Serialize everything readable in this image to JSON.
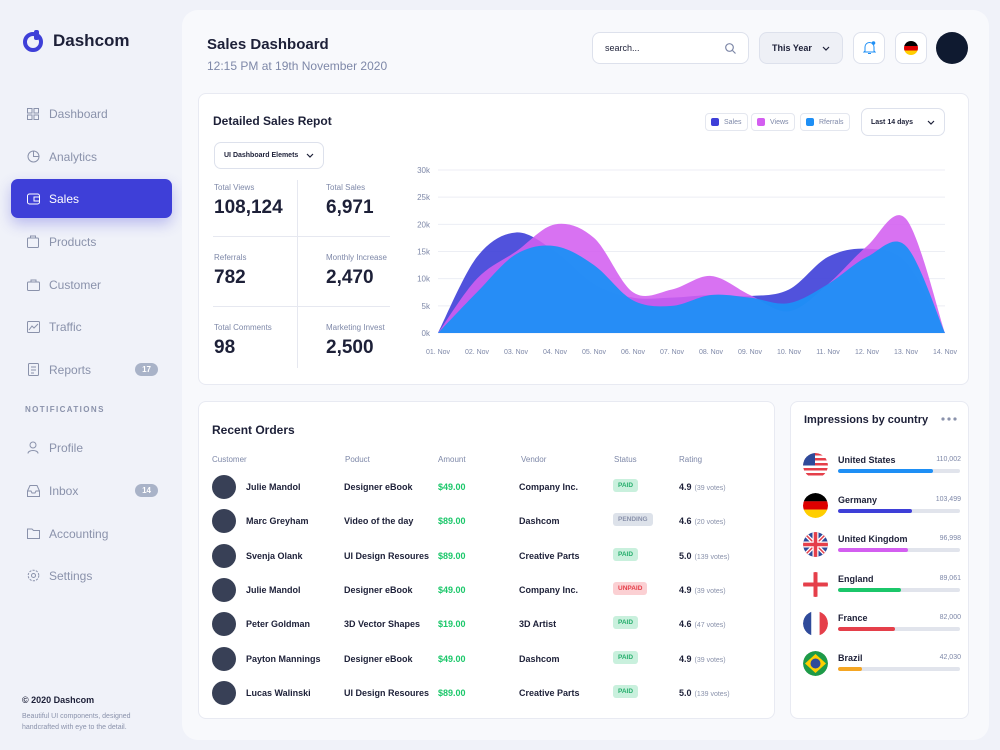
{
  "brand": {
    "name": "Dashcom",
    "accent": "#3e3fd8"
  },
  "nav": {
    "items": [
      {
        "label": "Dashboard",
        "icon": "dashboard-icon"
      },
      {
        "label": "Analytics",
        "icon": "analytics-icon"
      },
      {
        "label": "Sales",
        "icon": "wallet-icon",
        "active": true
      },
      {
        "label": "Products",
        "icon": "products-icon"
      },
      {
        "label": "Customer",
        "icon": "briefcase-icon"
      },
      {
        "label": "Traffic",
        "icon": "traffic-icon"
      },
      {
        "label": "Reports",
        "icon": "reports-icon",
        "badge": "17"
      }
    ],
    "notifications_heading": "NOTIFICATIONS",
    "notification_items": [
      {
        "label": "Profile",
        "icon": "profile-icon"
      },
      {
        "label": "Inbox",
        "icon": "inbox-icon",
        "badge": "14"
      },
      {
        "label": "Accounting",
        "icon": "folder-icon"
      },
      {
        "label": "Settings",
        "icon": "settings-icon"
      }
    ]
  },
  "footer": {
    "copyright": "© 2020 Dashcom",
    "tagline": "Beautiful UI components, designed handcrafted with eye to the detail."
  },
  "header": {
    "title": "Sales Dashboard",
    "subtitle": "12:15 PM at 19th November 2020",
    "search_placeholder": "search...",
    "period": "This Year"
  },
  "sales_report": {
    "title": "Detailed Sales Repot",
    "filter": "UI Dashboard Elemets",
    "range": "Last 14 days",
    "stats": [
      {
        "label": "Total Views",
        "value": "108,124"
      },
      {
        "label": "Total Sales",
        "value": "6,971"
      },
      {
        "label": "Referrals",
        "value": "782"
      },
      {
        "label": "Monthly Increase",
        "value": "2,470"
      },
      {
        "label": "Total Comments",
        "value": "98"
      },
      {
        "label": "Marketing Invest",
        "value": "2,500"
      }
    ]
  },
  "chart_data": {
    "type": "area",
    "x": [
      "01. Nov",
      "02. Nov",
      "03. Nov",
      "04. Nov",
      "05. Nov",
      "06. Nov",
      "07. Nov",
      "08. Nov",
      "09. Nov",
      "10. Nov",
      "11. Nov",
      "12. Nov",
      "13. Nov",
      "14. Nov"
    ],
    "yticks": [
      "0k",
      "5k",
      "10k",
      "15k",
      "20k",
      "25k",
      "30k"
    ],
    "ylim": [
      0,
      30000
    ],
    "series": [
      {
        "name": "Sales",
        "color": "#3e3fd8",
        "values": [
          0,
          14000,
          18500,
          15000,
          9000,
          6500,
          6500,
          7000,
          6800,
          8000,
          14000,
          15500,
          13000,
          0
        ]
      },
      {
        "name": "Views",
        "color": "#d35ef0",
        "values": [
          0,
          10000,
          15000,
          20000,
          17500,
          7500,
          8000,
          10500,
          7000,
          4000,
          9000,
          16000,
          21000,
          0
        ]
      },
      {
        "name": "Rferrals",
        "color": "#1e8ff5",
        "values": [
          0,
          7500,
          14500,
          16000,
          12500,
          6000,
          5000,
          7000,
          6500,
          5500,
          9000,
          14000,
          16000,
          0
        ]
      }
    ],
    "grid": true
  },
  "orders": {
    "title": "Recent Orders",
    "headers": [
      "Customer",
      "Poduct",
      "Amount",
      "Vendor",
      "Status",
      "Rating"
    ],
    "rows": [
      {
        "customer": "Julie Mandol",
        "product": "Designer eBook",
        "amount": "$49.00",
        "vendor": "Company Inc.",
        "status": "PAID",
        "rating": "4.9",
        "votes": "(39 votes)"
      },
      {
        "customer": "Marc Greyham",
        "product": "Video of the day",
        "amount": "$89.00",
        "vendor": "Dashcom",
        "status": "PENDING",
        "rating": "4.6",
        "votes": "(20 votes)"
      },
      {
        "customer": "Svenja Olank",
        "product": "UI Design Resoures",
        "amount": "$89.00",
        "vendor": "Creative Parts",
        "status": "PAID",
        "rating": "5.0",
        "votes": "(139 votes)"
      },
      {
        "customer": "Julie Mandol",
        "product": "Designer eBook",
        "amount": "$49.00",
        "vendor": "Company Inc.",
        "status": "UNPAID",
        "rating": "4.9",
        "votes": "(39 votes)"
      },
      {
        "customer": "Peter Goldman",
        "product": "3D Vector Shapes",
        "amount": "$19.00",
        "vendor": "3D Artist",
        "status": "PAID",
        "rating": "4.6",
        "votes": "(47 votes)"
      },
      {
        "customer": "Payton Mannings",
        "product": "Designer eBook",
        "amount": "$49.00",
        "vendor": "Dashcom",
        "status": "PAID",
        "rating": "4.9",
        "votes": "(39 votes)"
      },
      {
        "customer": "Lucas Walinski",
        "product": "UI Design Resoures",
        "amount": "$89.00",
        "vendor": "Creative Parts",
        "status": "PAID",
        "rating": "5.0",
        "votes": "(139 votes)"
      }
    ]
  },
  "impressions": {
    "title": "Impressions by country",
    "countries": [
      {
        "name": "United States",
        "value": "110,002",
        "share": 0.78,
        "color": "#1e8ff5",
        "flag": "us"
      },
      {
        "name": "Germany",
        "value": "103,499",
        "share": 0.61,
        "color": "#3e3fd8",
        "flag": "de"
      },
      {
        "name": "United Kingdom",
        "value": "96,998",
        "share": 0.57,
        "color": "#d35ef0",
        "flag": "uk"
      },
      {
        "name": "England",
        "value": "89,061",
        "share": 0.52,
        "color": "#1bc76a",
        "flag": "en"
      },
      {
        "name": "France",
        "value": "82,000",
        "share": 0.47,
        "color": "#e53f4a",
        "flag": "fr"
      },
      {
        "name": "Brazil",
        "value": "42,030",
        "share": 0.2,
        "color": "#f5a623",
        "flag": "br"
      }
    ]
  }
}
